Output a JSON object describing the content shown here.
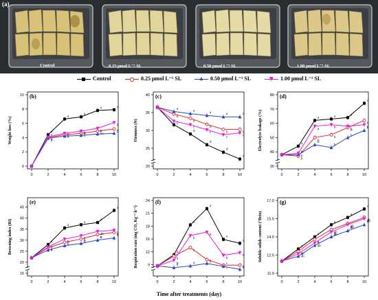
{
  "photo": {
    "letter": "(a)",
    "trays": [
      {
        "label": "Control"
      },
      {
        "label": "0.25 μmol L⁻¹ SL"
      },
      {
        "label": "0.50 μmol L⁻¹ SL"
      },
      {
        "label": "1.00 μmol L⁻¹ SL"
      }
    ]
  },
  "legend": [
    {
      "name": "Control",
      "color": "#000000",
      "marker": "square"
    },
    {
      "name": "0.25 μmol L⁻¹ SL",
      "color": "#e8222a",
      "marker": "circle"
    },
    {
      "name": "0.50 μmol L⁻¹ SL",
      "color": "#2b46c9",
      "marker": "triangle"
    },
    {
      "name": "1.00 μmol L⁻¹ SL",
      "color": "#e51ce0",
      "marker": "diamond"
    }
  ],
  "x_axis_title": "Time after treatments (day)",
  "chart_data": [
    {
      "id": "b",
      "letter": "(b)",
      "type": "line",
      "ylabel": "Weight loss (%)",
      "ylim": [
        0,
        10
      ],
      "yticks": [
        0,
        2,
        4,
        6,
        8,
        10
      ],
      "ytick_labels": [
        "0",
        "2",
        "4",
        "6",
        "8",
        "10"
      ],
      "ybreak": false,
      "x": [
        0,
        2,
        4,
        6,
        8,
        10
      ],
      "xlim": [
        0,
        10
      ],
      "xticks": [
        0,
        2,
        4,
        6,
        8,
        10
      ],
      "series": [
        {
          "name": "Control",
          "values": [
            0,
            4.4,
            6.6,
            6.9,
            7.8,
            7.9
          ],
          "letters": [
            "",
            "a",
            "a",
            "a",
            "a",
            "a"
          ]
        },
        {
          "name": "0.25 μmol L⁻¹ SL",
          "values": [
            0,
            4.0,
            4.4,
            4.6,
            4.9,
            5.2
          ],
          "letters": [
            "",
            "b",
            "b",
            "b",
            "bc",
            "b"
          ]
        },
        {
          "name": "0.50 μmol L⁻¹ SL",
          "values": [
            0,
            3.9,
            4.2,
            4.3,
            4.5,
            4.6
          ],
          "letters": [
            "",
            "b",
            "b",
            "b",
            "c",
            "c"
          ]
        },
        {
          "name": "1.00 μmol L⁻¹ SL",
          "values": [
            0,
            4.1,
            4.6,
            4.9,
            5.3,
            6.1
          ],
          "letters": [
            "",
            "b",
            "b",
            "b",
            "b",
            "b"
          ]
        }
      ]
    },
    {
      "id": "c",
      "letter": "(c)",
      "type": "line",
      "ylabel": "Firmness (N)",
      "ylim": [
        20,
        40
      ],
      "yticks": [
        20,
        25,
        30,
        35,
        40
      ],
      "ytick_labels": [
        "20",
        "25",
        "30",
        "35",
        "40"
      ],
      "ybreak": true,
      "x": [
        0,
        2,
        4,
        6,
        8,
        10
      ],
      "xlim": [
        0,
        10
      ],
      "xticks": [
        0,
        2,
        4,
        6,
        8,
        10
      ],
      "series": [
        {
          "name": "Control",
          "values": [
            36.5,
            31.6,
            29.0,
            26.0,
            23.9,
            22.0
          ],
          "letters": [
            "",
            "c",
            "d",
            "d",
            "d",
            "d"
          ]
        },
        {
          "name": "0.25 μmol L⁻¹ SL",
          "values": [
            36.5,
            34.6,
            33.4,
            31.7,
            30.3,
            30.3
          ],
          "letters": [
            "",
            "b",
            "b",
            "b",
            "b",
            "b"
          ]
        },
        {
          "name": "0.50 μmol L⁻¹ SL",
          "values": [
            36.5,
            35.3,
            34.7,
            34.2,
            33.8,
            33.8
          ],
          "letters": [
            "",
            "a",
            "a",
            "a",
            "a",
            "a"
          ]
        },
        {
          "name": "1.00 μmol L⁻¹ SL",
          "values": [
            36.5,
            32.6,
            31.6,
            30.2,
            28.8,
            29.3
          ],
          "letters": [
            "",
            "c",
            "c",
            "c",
            "c",
            "c"
          ]
        }
      ]
    },
    {
      "id": "d",
      "letter": "(d)",
      "type": "line",
      "ylabel": "Electrolyte leakage (%)",
      "ylim": [
        30,
        80
      ],
      "yticks": [
        30,
        40,
        50,
        60,
        70,
        80
      ],
      "ytick_labels": [
        "30",
        "40",
        "50",
        "60",
        "70",
        "80"
      ],
      "ybreak": true,
      "x": [
        0,
        2,
        4,
        6,
        8,
        10
      ],
      "xlim": [
        0,
        10
      ],
      "xticks": [
        0,
        2,
        4,
        6,
        8,
        10
      ],
      "series": [
        {
          "name": "Control",
          "values": [
            38,
            44,
            62,
            63,
            64,
            74
          ],
          "letters": [
            "",
            "a",
            "a",
            "a",
            "a",
            "a"
          ]
        },
        {
          "name": "0.25 μmol L⁻¹ SL",
          "values": [
            38,
            37,
            50,
            52,
            57,
            62
          ],
          "letters": [
            "",
            "b",
            "b",
            "b",
            "b",
            "b"
          ]
        },
        {
          "name": "0.50 μmol L⁻¹ SL",
          "values": [
            38,
            38,
            45,
            43,
            50,
            55
          ],
          "letters": [
            "",
            "b",
            "b",
            "b",
            "c",
            "c"
          ]
        },
        {
          "name": "1.00 μmol L⁻¹ SL",
          "values": [
            38,
            39,
            58,
            59,
            58,
            59
          ],
          "letters": [
            "",
            "b",
            "a",
            "b",
            "b",
            "b"
          ]
        }
      ]
    },
    {
      "id": "e",
      "letter": "(e)",
      "type": "line",
      "ylabel": "Browning index (BI)",
      "ylim": [
        15,
        48
      ],
      "yticks": [
        15,
        20,
        25,
        30,
        35,
        40,
        45
      ],
      "ytick_labels": [
        "15",
        "20",
        "25",
        "30",
        "35",
        "40",
        "45"
      ],
      "ybreak": true,
      "x": [
        0,
        2,
        4,
        6,
        8,
        10
      ],
      "xlim": [
        0,
        10
      ],
      "xticks": [
        0,
        2,
        4,
        6,
        8,
        10
      ],
      "series": [
        {
          "name": "Control",
          "values": [
            22,
            28,
            35.5,
            37,
            38,
            43.5
          ],
          "letters": [
            "",
            "a",
            "a",
            "a",
            "a",
            "a"
          ]
        },
        {
          "name": "0.25 μmol L⁻¹ SL",
          "values": [
            22,
            26.5,
            29,
            30.5,
            32.5,
            33.5
          ],
          "letters": [
            "",
            "b",
            "b",
            "b",
            "b",
            "b"
          ]
        },
        {
          "name": "0.50 μmol L⁻¹ SL",
          "values": [
            22,
            25.5,
            27.5,
            28.5,
            30,
            31
          ],
          "letters": [
            "",
            "b",
            "b",
            "b",
            "b",
            "b"
          ]
        },
        {
          "name": "1.00 μmol L⁻¹ SL",
          "values": [
            22,
            27,
            30.5,
            32,
            34,
            34.5
          ],
          "letters": [
            "",
            "a",
            "b",
            "b",
            "ab",
            "b"
          ]
        }
      ]
    },
    {
      "id": "f",
      "letter": "(f)",
      "type": "line",
      "ylabel": "Respiration rate (mg CO₂ Kg⁻¹ h⁻¹)",
      "ylim": [
        7,
        24
      ],
      "yticks": [
        9,
        12,
        15,
        18,
        21,
        24
      ],
      "ytick_labels": [
        "9",
        "12",
        "15",
        "18",
        "21",
        "24"
      ],
      "ybreak": true,
      "x": [
        0,
        2,
        4,
        6,
        8,
        10
      ],
      "xlim": [
        0,
        10
      ],
      "xticks": [
        0,
        2,
        4,
        6,
        8,
        10
      ],
      "series": [
        {
          "name": "Control",
          "values": [
            8.7,
            11.3,
            18.3,
            22.1,
            14.9,
            14.0
          ],
          "letters": [
            "",
            "a",
            "a",
            "a",
            "a",
            "a"
          ]
        },
        {
          "name": "0.25 μmol L⁻¹ SL",
          "values": [
            8.7,
            11.0,
            13.0,
            10.2,
            8.9,
            8.9
          ],
          "letters": [
            "",
            "a",
            "c",
            "c",
            "c",
            "b"
          ]
        },
        {
          "name": "0.50 μmol L⁻¹ SL",
          "values": [
            8.7,
            8.3,
            8.7,
            9.3,
            8.6,
            7.9
          ],
          "letters": [
            "",
            "b",
            "d",
            "c",
            "c",
            "b"
          ]
        },
        {
          "name": "1.00 μmol L⁻¹ SL",
          "values": [
            8.7,
            10.0,
            15.8,
            16.6,
            11.2,
            11.8
          ],
          "letters": [
            "",
            "b",
            "b",
            "b",
            "b",
            "b"
          ]
        }
      ]
    },
    {
      "id": "g",
      "letter": "(g)",
      "type": "line",
      "ylabel": "Soluble solids content (°Brix)",
      "ylim": [
        11.0,
        17.0
      ],
      "yticks": [
        11.0,
        12.5,
        14.0,
        15.5,
        17.0
      ],
      "ytick_labels": [
        "11.0",
        "12.5",
        "14.0",
        "15.5",
        "17.0"
      ],
      "ybreak": false,
      "x": [
        0,
        2,
        4,
        6,
        8,
        10
      ],
      "xlim": [
        0,
        10
      ],
      "xticks": [
        0,
        2,
        4,
        6,
        8,
        10
      ],
      "series": [
        {
          "name": "Control",
          "values": [
            12.0,
            13.0,
            14.0,
            15.0,
            15.6,
            16.3
          ],
          "letters": [
            "",
            "a",
            "a",
            "a",
            "a",
            "a"
          ]
        },
        {
          "name": "0.25 μmol L⁻¹ SL",
          "values": [
            12.0,
            12.8,
            13.8,
            14.6,
            15.1,
            15.6
          ],
          "letters": [
            "",
            "ab",
            "a",
            "ab",
            "ab",
            "ab"
          ]
        },
        {
          "name": "0.50 μmol L⁻¹ SL",
          "values": [
            12.0,
            12.4,
            13.3,
            14.0,
            14.5,
            15.0
          ],
          "letters": [
            "",
            "b",
            "b",
            "b",
            "b",
            "b"
          ]
        },
        {
          "name": "1.00 μmol L⁻¹ SL",
          "values": [
            12.0,
            12.6,
            13.5,
            14.4,
            15.0,
            15.5
          ],
          "letters": [
            "",
            "ab",
            "ab",
            "ab",
            "ab",
            "ab"
          ]
        }
      ]
    }
  ]
}
